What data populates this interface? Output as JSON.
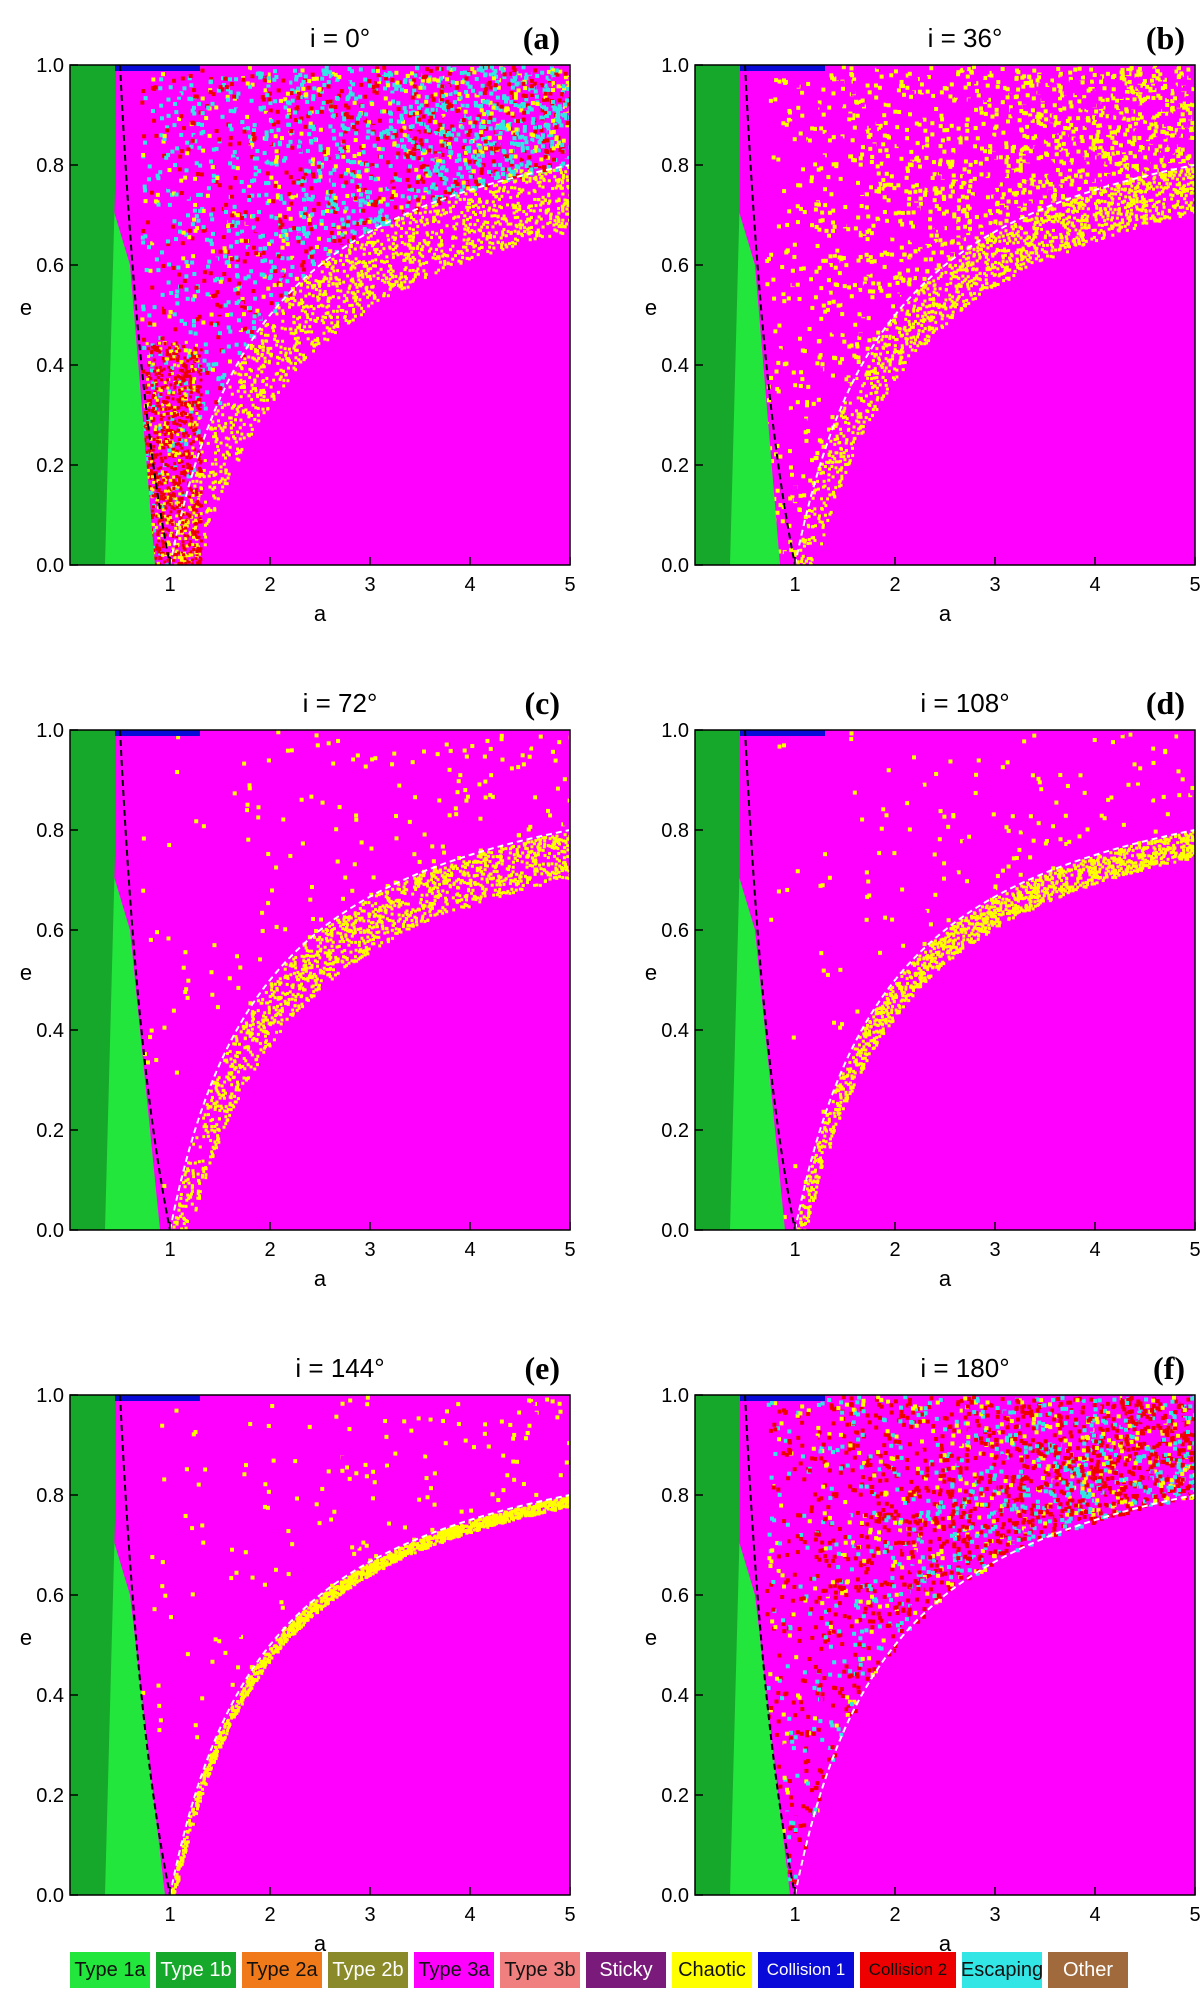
{
  "chart_data": [
    {
      "panel": "(a)",
      "title": "i = 0°",
      "type": "heatmap",
      "xlabel": "a",
      "ylabel": "e",
      "xlim": [
        0.0,
        5.0
      ],
      "ylim": [
        0.0,
        1.0
      ],
      "xticks": [
        "1",
        "2",
        "3",
        "4",
        "5"
      ],
      "yticks": [
        "0.0",
        "0.2",
        "0.4",
        "0.6",
        "0.8",
        "1.0"
      ],
      "type1_green_boundary": [
        [
          0.0,
          1.0
        ],
        [
          0.6,
          0.6
        ],
        [
          0.85,
          0.0
        ]
      ],
      "chaotic_band": "broad",
      "upper_mix": "escaping",
      "lower_region": "collision2"
    },
    {
      "panel": "(b)",
      "title": "i = 36°",
      "type": "heatmap",
      "xlabel": "a",
      "ylabel": "e",
      "xlim": [
        0.0,
        5.0
      ],
      "ylim": [
        0.0,
        1.0
      ],
      "xticks": [
        "1",
        "2",
        "3",
        "4",
        "5"
      ],
      "yticks": [
        "0.0",
        "0.2",
        "0.4",
        "0.6",
        "0.8",
        "1.0"
      ],
      "type1_green_boundary": [
        [
          0.0,
          1.0
        ],
        [
          0.6,
          0.6
        ],
        [
          0.85,
          0.0
        ]
      ],
      "chaotic_band": "medium",
      "upper_mix": "chaotic",
      "lower_region": "type3a"
    },
    {
      "panel": "(c)",
      "title": "i = 72°",
      "type": "heatmap",
      "xlabel": "a",
      "ylabel": "e",
      "xlim": [
        0.0,
        5.0
      ],
      "ylim": [
        0.0,
        1.0
      ],
      "xticks": [
        "1",
        "2",
        "3",
        "4",
        "5"
      ],
      "yticks": [
        "0.0",
        "0.2",
        "0.4",
        "0.6",
        "0.8",
        "1.0"
      ],
      "type1_green_boundary": [
        [
          0.0,
          1.0
        ],
        [
          0.6,
          0.6
        ],
        [
          0.9,
          0.0
        ]
      ],
      "chaotic_band": "medium",
      "upper_mix": "type3a",
      "lower_region": "type3a"
    },
    {
      "panel": "(d)",
      "title": "i = 108°",
      "type": "heatmap",
      "xlabel": "a",
      "ylabel": "e",
      "xlim": [
        0.0,
        5.0
      ],
      "ylim": [
        0.0,
        1.0
      ],
      "xticks": [
        "1",
        "2",
        "3",
        "4",
        "5"
      ],
      "yticks": [
        "0.0",
        "0.2",
        "0.4",
        "0.6",
        "0.8",
        "1.0"
      ],
      "type1_green_boundary": [
        [
          0.0,
          1.0
        ],
        [
          0.6,
          0.6
        ],
        [
          0.9,
          0.0
        ]
      ],
      "chaotic_band": "narrow",
      "upper_mix": "type3a",
      "lower_region": "type3a"
    },
    {
      "panel": "(e)",
      "title": "i = 144°",
      "type": "heatmap",
      "xlabel": "a",
      "ylabel": "e",
      "xlim": [
        0.0,
        5.0
      ],
      "ylim": [
        0.0,
        1.0
      ],
      "xticks": [
        "1",
        "2",
        "3",
        "4",
        "5"
      ],
      "yticks": [
        "0.0",
        "0.2",
        "0.4",
        "0.6",
        "0.8",
        "1.0"
      ],
      "type1_green_boundary": [
        [
          0.0,
          1.0
        ],
        [
          0.6,
          0.6
        ],
        [
          0.95,
          0.0
        ]
      ],
      "chaotic_band": "thin",
      "upper_mix": "type3a",
      "lower_region": "type3a"
    },
    {
      "panel": "(f)",
      "title": "i = 180°",
      "type": "heatmap",
      "xlabel": "a",
      "ylabel": "e",
      "xlim": [
        0.0,
        5.0
      ],
      "ylim": [
        0.0,
        1.0
      ],
      "xticks": [
        "1",
        "2",
        "3",
        "4",
        "5"
      ],
      "yticks": [
        "0.0",
        "0.2",
        "0.4",
        "0.6",
        "0.8",
        "1.0"
      ],
      "type1_green_boundary": [
        [
          0.0,
          1.0
        ],
        [
          0.6,
          0.6
        ],
        [
          0.95,
          0.0
        ]
      ],
      "chaotic_band": "none",
      "upper_mix": "collision2",
      "lower_region": "type3a"
    }
  ],
  "legend": [
    {
      "label": "Type 1a",
      "color": "#22e63c",
      "text_color": "#111111"
    },
    {
      "label": "Type 1b",
      "color": "#16a82a",
      "text_color": "#ffffff"
    },
    {
      "label": "Type 2a",
      "color": "#f07a1a",
      "text_color": "#111111"
    },
    {
      "label": "Type 2b",
      "color": "#8a8a2a",
      "text_color": "#ffffff"
    },
    {
      "label": "Type 3a",
      "color": "#ff00ff",
      "text_color": "#111111"
    },
    {
      "label": "Type 3b",
      "color": "#f08080",
      "text_color": "#111111"
    },
    {
      "label": "Sticky",
      "color": "#7a1a7a",
      "text_color": "#ffffff"
    },
    {
      "label": "Chaotic",
      "color": "#ffff00",
      "text_color": "#111111"
    },
    {
      "label": "Collision 1",
      "color": "#0a0ad8",
      "text_color": "#ffffff"
    },
    {
      "label": "Collision 2",
      "color": "#ee0000",
      "text_color": "#111111"
    },
    {
      "label": "Escaping",
      "color": "#33e6e6",
      "text_color": "#111111"
    },
    {
      "label": "Other",
      "color": "#a06a3c",
      "text_color": "#ffffff"
    }
  ]
}
